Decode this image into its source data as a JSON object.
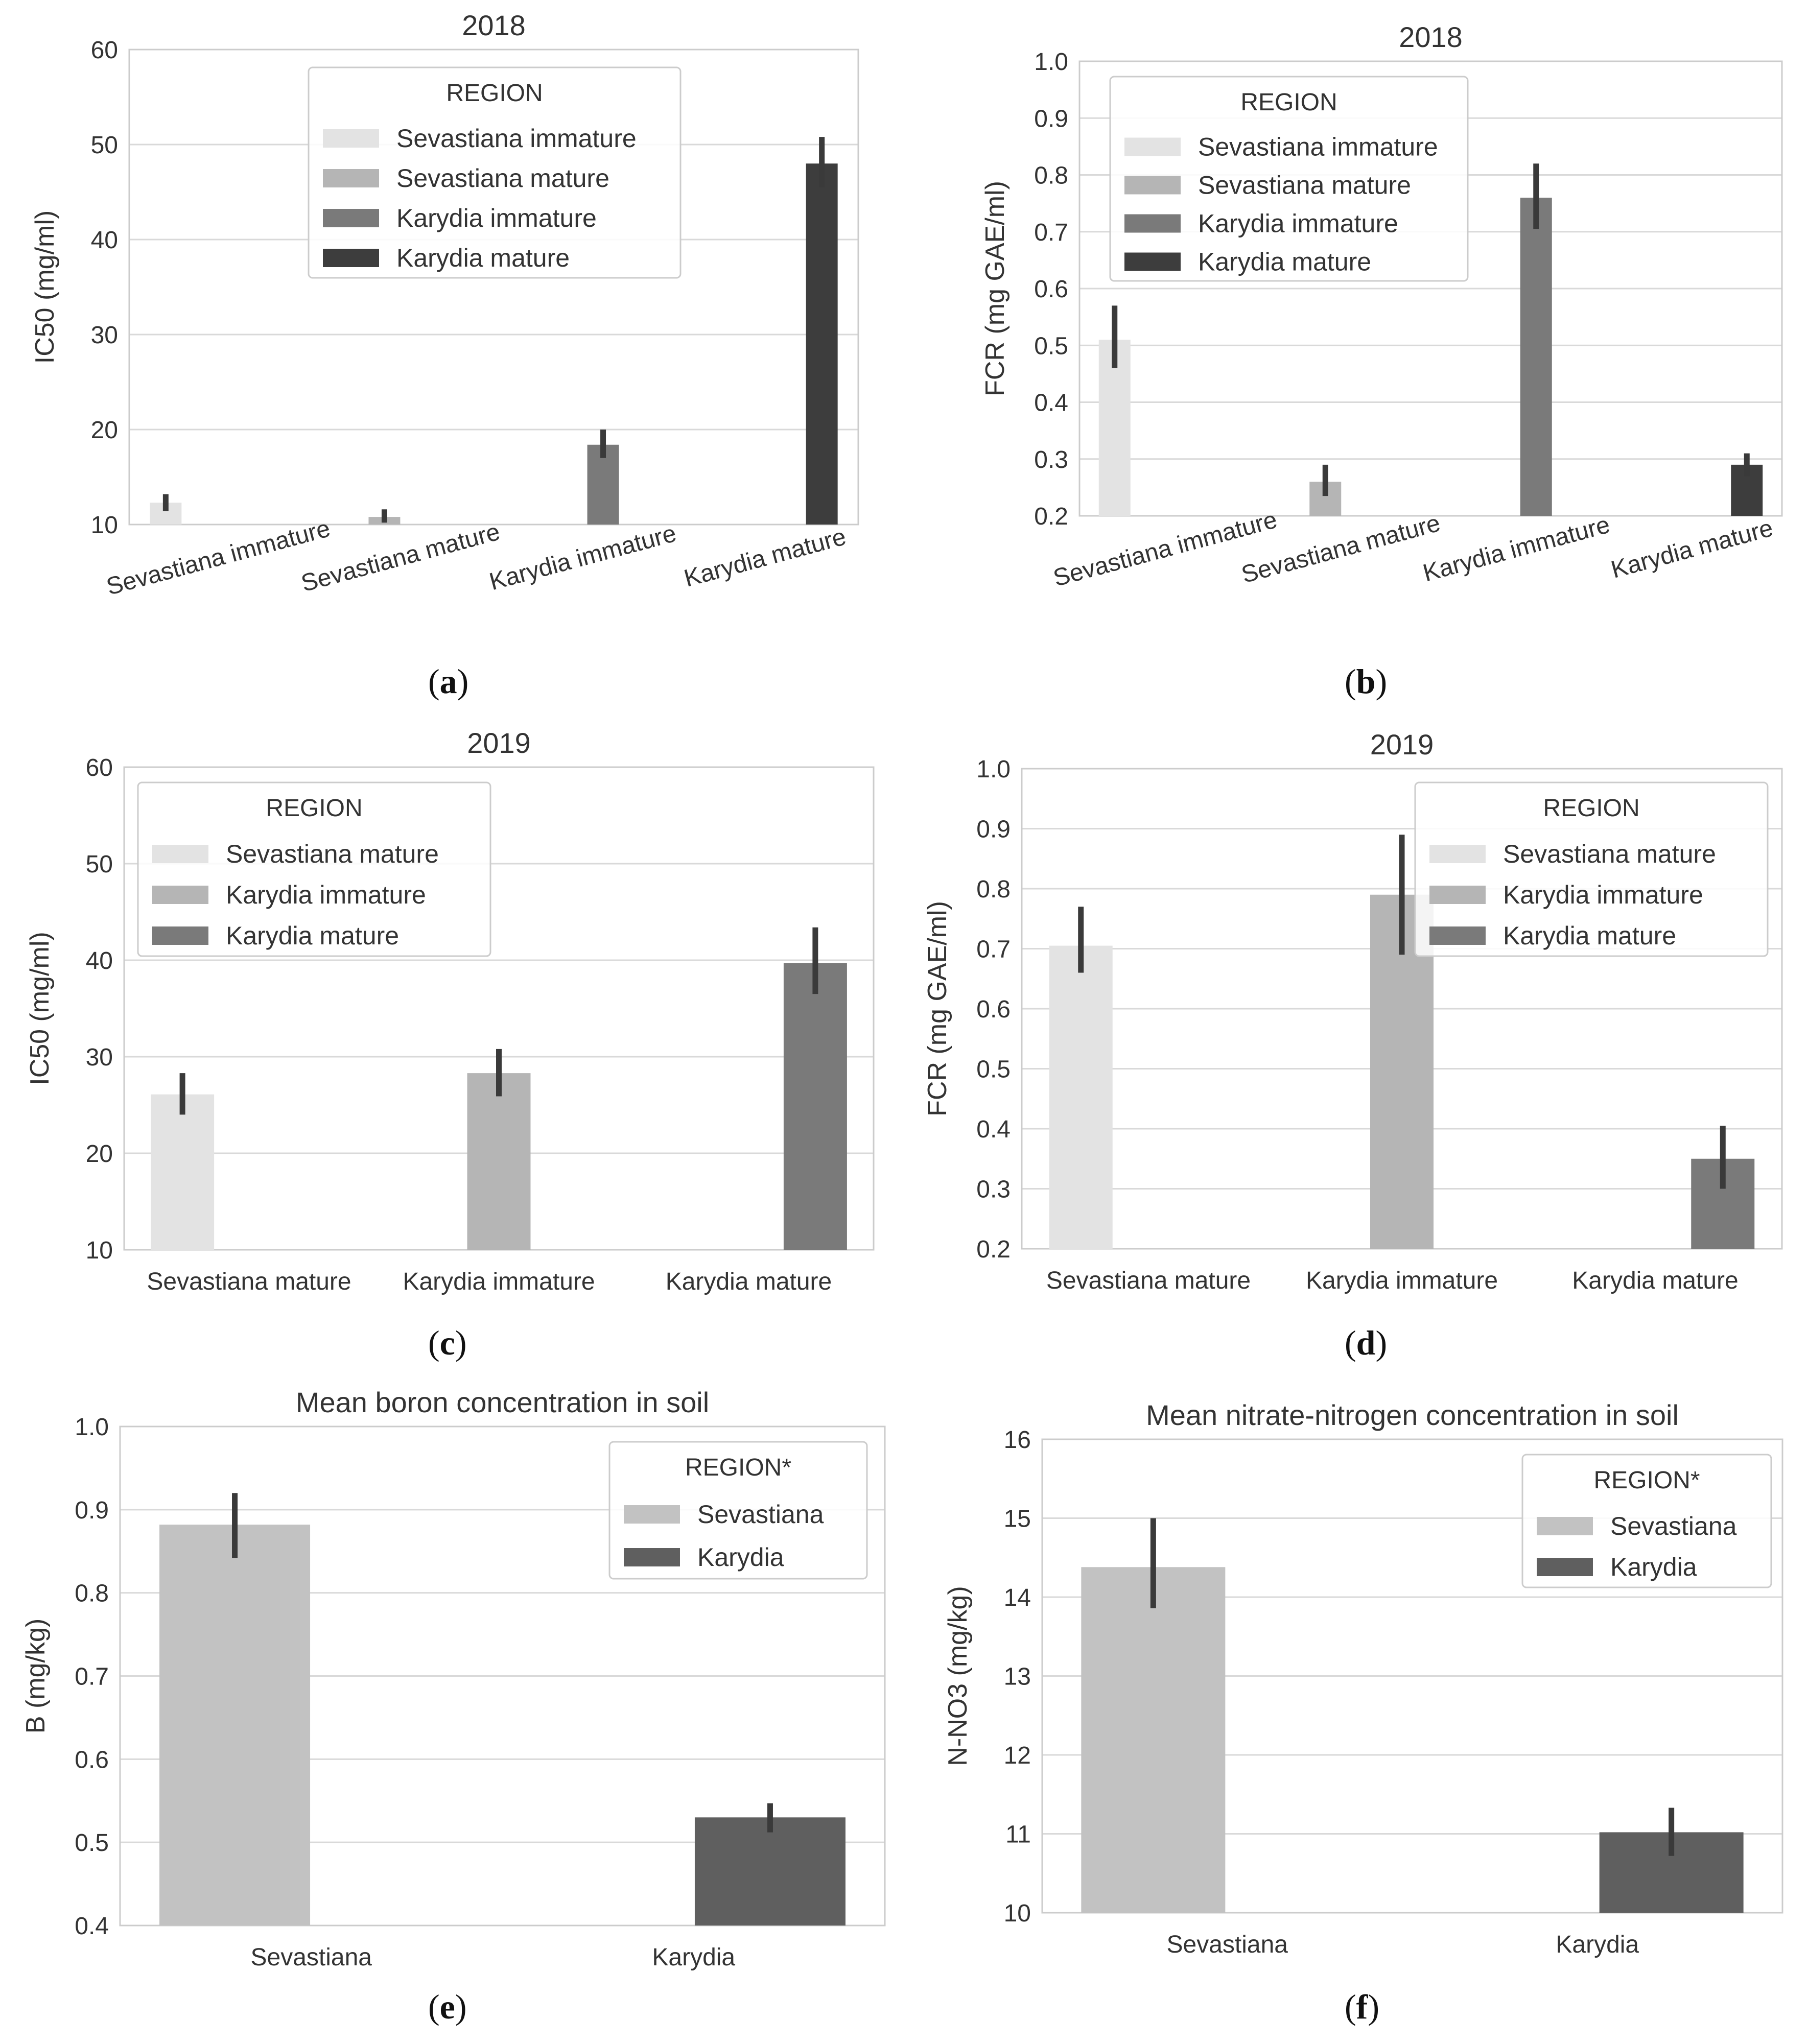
{
  "captions": [
    "(a)",
    "(b)",
    "(c)",
    "(d)",
    "(e)",
    "(f)"
  ],
  "caption_letters": [
    "a",
    "b",
    "c",
    "d",
    "e",
    "f"
  ],
  "chart_data": [
    {
      "type": "bar",
      "title": "2018",
      "ylabel": "IC50 (mg/ml)",
      "xlabel": "",
      "ylim": [
        10,
        60
      ],
      "yticks": [
        "10",
        "20",
        "30",
        "40",
        "50",
        "60"
      ],
      "categories": [
        "Sevastiana immature",
        "Sevastiana mature",
        "Karydia immature",
        "Karydia mature"
      ],
      "x_tick_rotation": -15,
      "legend": {
        "title": "REGION",
        "position": "top-center"
      },
      "grid": true,
      "series": [
        {
          "name": "Sevastiana immature",
          "color": "#e3e3e3",
          "values": [
            12.3,
            null,
            null,
            null
          ],
          "err_low": [
            11.4,
            null,
            null,
            null
          ],
          "err_high": [
            13.2,
            null,
            null,
            null
          ]
        },
        {
          "name": "Sevastiana mature",
          "color": "#b5b5b5",
          "values": [
            null,
            10.8,
            null,
            null
          ],
          "err_low": [
            null,
            10.2,
            null,
            null
          ],
          "err_high": [
            null,
            11.6,
            null,
            null
          ]
        },
        {
          "name": "Karydia immature",
          "color": "#7a7a7a",
          "values": [
            null,
            null,
            18.4,
            null
          ],
          "err_low": [
            null,
            null,
            17.0,
            null
          ],
          "err_high": [
            null,
            null,
            20.0,
            null
          ]
        },
        {
          "name": "Karydia mature",
          "color": "#3d3d3d",
          "values": [
            null,
            null,
            null,
            48.0
          ],
          "err_low": [
            null,
            null,
            null,
            45.5
          ],
          "err_high": [
            null,
            null,
            null,
            50.8
          ]
        }
      ]
    },
    {
      "type": "bar",
      "title": "2018",
      "ylabel": "FCR (mg GAE/ml)",
      "xlabel": "",
      "ylim": [
        0.2,
        1.0
      ],
      "yticks": [
        "0.2",
        "0.3",
        "0.4",
        "0.5",
        "0.6",
        "0.7",
        "0.8",
        "0.9",
        "1.0"
      ],
      "categories": [
        "Sevastiana immature",
        "Sevastiana mature",
        "Karydia immature",
        "Karydia mature"
      ],
      "x_tick_rotation": -15,
      "legend": {
        "title": "REGION",
        "position": "top-left"
      },
      "grid": true,
      "series": [
        {
          "name": "Sevastiana immature",
          "color": "#e3e3e3",
          "values": [
            0.51,
            null,
            null,
            null
          ],
          "err_low": [
            0.46,
            null,
            null,
            null
          ],
          "err_high": [
            0.57,
            null,
            null,
            null
          ]
        },
        {
          "name": "Sevastiana mature",
          "color": "#b5b5b5",
          "values": [
            null,
            0.26,
            null,
            null
          ],
          "err_low": [
            null,
            0.235,
            null,
            null
          ],
          "err_high": [
            null,
            0.29,
            null,
            null
          ]
        },
        {
          "name": "Karydia immature",
          "color": "#7a7a7a",
          "values": [
            null,
            null,
            0.76,
            null
          ],
          "err_low": [
            null,
            null,
            0.705,
            null
          ],
          "err_high": [
            null,
            null,
            0.82,
            null
          ]
        },
        {
          "name": "Karydia mature",
          "color": "#3d3d3d",
          "values": [
            null,
            null,
            null,
            0.29
          ],
          "err_low": [
            null,
            null,
            null,
            0.27
          ],
          "err_high": [
            null,
            null,
            null,
            0.31
          ]
        }
      ]
    },
    {
      "type": "bar",
      "title": "2019",
      "ylabel": "IC50 (mg/ml)",
      "xlabel": "",
      "ylim": [
        10,
        60
      ],
      "yticks": [
        "10",
        "20",
        "30",
        "40",
        "50",
        "60"
      ],
      "categories": [
        "Sevastiana mature",
        "Karydia immature",
        "Karydia mature"
      ],
      "x_tick_rotation": 0,
      "legend": {
        "title": "REGION",
        "position": "top-left"
      },
      "grid": true,
      "series": [
        {
          "name": "Sevastiana mature",
          "color": "#e3e3e3",
          "values": [
            26.1,
            null,
            null
          ],
          "err_low": [
            24.0,
            null,
            null
          ],
          "err_high": [
            28.3,
            null,
            null
          ]
        },
        {
          "name": "Karydia immature",
          "color": "#b5b5b5",
          "values": [
            null,
            28.3,
            null
          ],
          "err_low": [
            null,
            25.9,
            null
          ],
          "err_high": [
            null,
            30.8,
            null
          ]
        },
        {
          "name": "Karydia mature",
          "color": "#7a7a7a",
          "values": [
            null,
            null,
            39.7
          ],
          "err_low": [
            null,
            null,
            36.5
          ],
          "err_high": [
            null,
            null,
            43.4
          ]
        }
      ]
    },
    {
      "type": "bar",
      "title": "2019",
      "ylabel": "FCR (mg GAE/ml)",
      "xlabel": "",
      "ylim": [
        0.2,
        1.0
      ],
      "yticks": [
        "0.2",
        "0.3",
        "0.4",
        "0.5",
        "0.6",
        "0.7",
        "0.8",
        "0.9",
        "1.0"
      ],
      "categories": [
        "Sevastiana mature",
        "Karydia immature",
        "Karydia mature"
      ],
      "x_tick_rotation": 0,
      "legend": {
        "title": "REGION",
        "position": "top-right"
      },
      "grid": true,
      "series": [
        {
          "name": "Sevastiana mature",
          "color": "#e3e3e3",
          "values": [
            0.705,
            null,
            null
          ],
          "err_low": [
            0.66,
            null,
            null
          ],
          "err_high": [
            0.77,
            null,
            null
          ]
        },
        {
          "name": "Karydia immature",
          "color": "#b5b5b5",
          "values": [
            null,
            0.79,
            null
          ],
          "err_low": [
            null,
            0.69,
            null
          ],
          "err_high": [
            null,
            0.89,
            null
          ]
        },
        {
          "name": "Karydia mature",
          "color": "#7a7a7a",
          "values": [
            null,
            null,
            0.35
          ],
          "err_low": [
            null,
            null,
            0.3
          ],
          "err_high": [
            null,
            null,
            0.405
          ]
        }
      ]
    },
    {
      "type": "bar",
      "title": "Mean boron concentration in soil",
      "ylabel": "B (mg/kg)",
      "xlabel": "",
      "ylim": [
        0.4,
        1.0
      ],
      "yticks": [
        "0.4",
        "0.5",
        "0.6",
        "0.7",
        "0.8",
        "0.9",
        "1.0"
      ],
      "categories": [
        "Sevastiana",
        "Karydia"
      ],
      "x_tick_rotation": 0,
      "legend": {
        "title": "REGION*",
        "position": "top-right"
      },
      "grid": true,
      "series": [
        {
          "name": "Sevastiana",
          "color": "#c2c2c2",
          "values": [
            0.882,
            null
          ],
          "err_low": [
            0.842,
            null
          ],
          "err_high": [
            0.92,
            null
          ]
        },
        {
          "name": "Karydia",
          "color": "#5f5f5f",
          "values": [
            null,
            0.53
          ],
          "err_low": [
            null,
            0.512
          ],
          "err_high": [
            null,
            0.547
          ]
        }
      ]
    },
    {
      "type": "bar",
      "title": "Mean nitrate-nitrogen concentration in soil",
      "ylabel": "N-NO3 (mg/kg)",
      "xlabel": "",
      "ylim": [
        10,
        16
      ],
      "yticks": [
        "10",
        "11",
        "12",
        "13",
        "14",
        "15",
        "16"
      ],
      "categories": [
        "Sevastiana",
        "Karydia"
      ],
      "x_tick_rotation": 0,
      "legend": {
        "title": "REGION*",
        "position": "top-right"
      },
      "grid": true,
      "series": [
        {
          "name": "Sevastiana",
          "color": "#c2c2c2",
          "values": [
            14.38,
            null
          ],
          "err_low": [
            13.86,
            null
          ],
          "err_high": [
            15.0,
            null
          ]
        },
        {
          "name": "Karydia",
          "color": "#5f5f5f",
          "values": [
            null,
            11.02
          ],
          "err_low": [
            null,
            10.72
          ],
          "err_high": [
            null,
            11.33
          ]
        }
      ]
    }
  ]
}
